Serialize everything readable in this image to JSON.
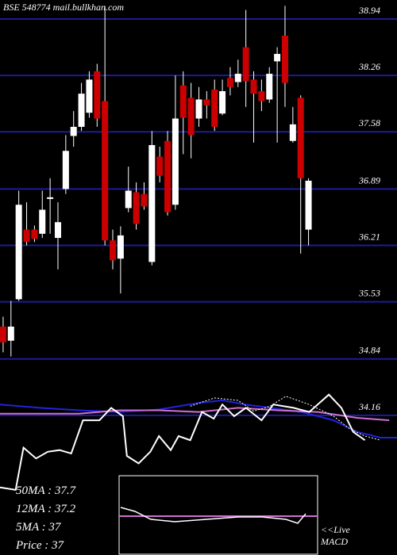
{
  "chart_data": {
    "type": "candlestick",
    "title": "BSE 548774 mail.bullkhan.com",
    "ylim": [
      33.9,
      39.17
    ],
    "xlim": [
      -0.4,
      50.3
    ],
    "yticks": [
      38.94,
      38.26,
      37.58,
      36.89,
      36.21,
      35.53,
      34.84,
      34.16
    ],
    "grid": true,
    "grid_color": "#1c1c96",
    "up_color": "#ffffff",
    "down_color": "#cc0000",
    "open": [
      35.23,
      35.06,
      35.56,
      36.4,
      36.4,
      36.35,
      36.77,
      36.3,
      36.89,
      37.53,
      37.64,
      37.81,
      38.31,
      37.95,
      36.27,
      36.05,
      36.66,
      36.85,
      36.83,
      36.01,
      37.28,
      37.47,
      36.7,
      38.14,
      37.99,
      37.74,
      37.97,
      38.09,
      37.8,
      38.23,
      38.18,
      38.6,
      38.21,
      38.07,
      37.97,
      38.43,
      38.74,
      37.47,
      37.99,
      36.4
    ],
    "close": [
      35.04,
      35.23,
      36.7,
      36.25,
      36.29,
      36.64,
      36.79,
      36.49,
      37.35,
      37.64,
      38.04,
      38.21,
      37.74,
      36.27,
      36.03,
      36.33,
      36.87,
      36.47,
      36.68,
      37.42,
      37.05,
      36.61,
      37.74,
      37.75,
      37.54,
      37.97,
      37.9,
      37.64,
      38.07,
      38.12,
      38.28,
      38.19,
      38.04,
      37.95,
      38.28,
      38.52,
      38.17,
      37.67,
      37.02,
      36.99
    ],
    "high": [
      35.35,
      35.54,
      36.87,
      36.73,
      36.45,
      36.87,
      37.02,
      36.73,
      37.54,
      37.83,
      38.17,
      38.31,
      38.4,
      39.1,
      36.4,
      36.44,
      37.16,
      36.97,
      36.97,
      37.59,
      37.4,
      37.59,
      38.26,
      38.31,
      38.17,
      38.12,
      38.07,
      38.21,
      38.21,
      38.36,
      38.45,
      39.05,
      38.31,
      38.21,
      38.36,
      38.6,
      39.1,
      37.88,
      38.02,
      37.02
    ],
    "low": [
      34.92,
      34.87,
      35.54,
      36.21,
      36.25,
      36.3,
      36.35,
      35.92,
      36.83,
      37.4,
      37.59,
      37.75,
      37.64,
      36.21,
      35.92,
      35.63,
      36.61,
      36.4,
      36.64,
      35.97,
      36.97,
      36.57,
      36.64,
      37.31,
      37.26,
      37.64,
      37.74,
      37.59,
      37.78,
      38.02,
      38.12,
      37.88,
      37.45,
      37.83,
      37.93,
      37.45,
      37.88,
      37.45,
      36.11,
      36.21
    ],
    "overlays": [
      {
        "color": "#2222dd",
        "style": "solid",
        "x": [
          -0.4,
          4.7,
          9.7,
          14.8,
          19.9,
          25.0,
          28.0,
          31.0,
          34.1,
          38.1,
          42.2,
          45.2,
          48.2,
          50.3
        ],
        "values": [
          34.29,
          34.25,
          34.22,
          34.2,
          34.23,
          34.31,
          34.34,
          34.29,
          34.25,
          34.2,
          34.1,
          33.96,
          33.89,
          33.89
        ]
      },
      {
        "color": "#d070d0",
        "style": "solid",
        "x": [
          -0.4,
          9.7,
          14.8,
          19.9,
          25.0,
          30.0,
          35.1,
          40.2,
          45.2,
          49.3
        ],
        "values": [
          34.18,
          34.18,
          34.22,
          34.22,
          34.2,
          34.25,
          34.22,
          34.2,
          34.13,
          34.1
        ]
      },
      {
        "color": "#ffffff",
        "style": "dotted",
        "x": [
          23.9,
          27.0,
          30.0,
          32.0,
          34.1,
          36.1,
          39.1,
          42.2,
          44.2,
          46.2,
          48.2
        ],
        "values": [
          34.27,
          34.37,
          34.34,
          34.21,
          34.27,
          34.39,
          34.29,
          34.15,
          34.0,
          33.91,
          33.86
        ]
      },
      {
        "color": "#ffffff",
        "style": "solid",
        "x": [
          -0.4,
          1.6,
          2.6,
          4.2,
          5.7,
          7.2,
          8.7,
          10.2,
          12.3,
          13.8,
          15.3,
          15.8,
          17.3,
          18.8,
          19.9,
          21.4,
          22.4,
          23.9,
          25.4,
          26.9,
          28.0,
          29.5,
          31.0,
          33.0,
          34.5,
          37.1,
          39.1,
          41.6,
          43.2,
          44.7,
          46.2
        ],
        "values": [
          33.29,
          33.26,
          33.77,
          33.64,
          33.72,
          33.74,
          33.7,
          34.1,
          34.1,
          34.25,
          34.15,
          33.67,
          33.58,
          33.72,
          33.91,
          33.74,
          33.91,
          33.86,
          34.2,
          34.12,
          34.29,
          34.15,
          34.25,
          34.1,
          34.29,
          34.25,
          34.2,
          34.41,
          34.25,
          33.96,
          33.86
        ]
      }
    ],
    "info": [
      "50MA : 37.7",
      "12MA : 37.2",
      "5MA : 37",
      "Price  : 37"
    ],
    "macd_label": [
      "<<Live",
      "MACD"
    ]
  }
}
